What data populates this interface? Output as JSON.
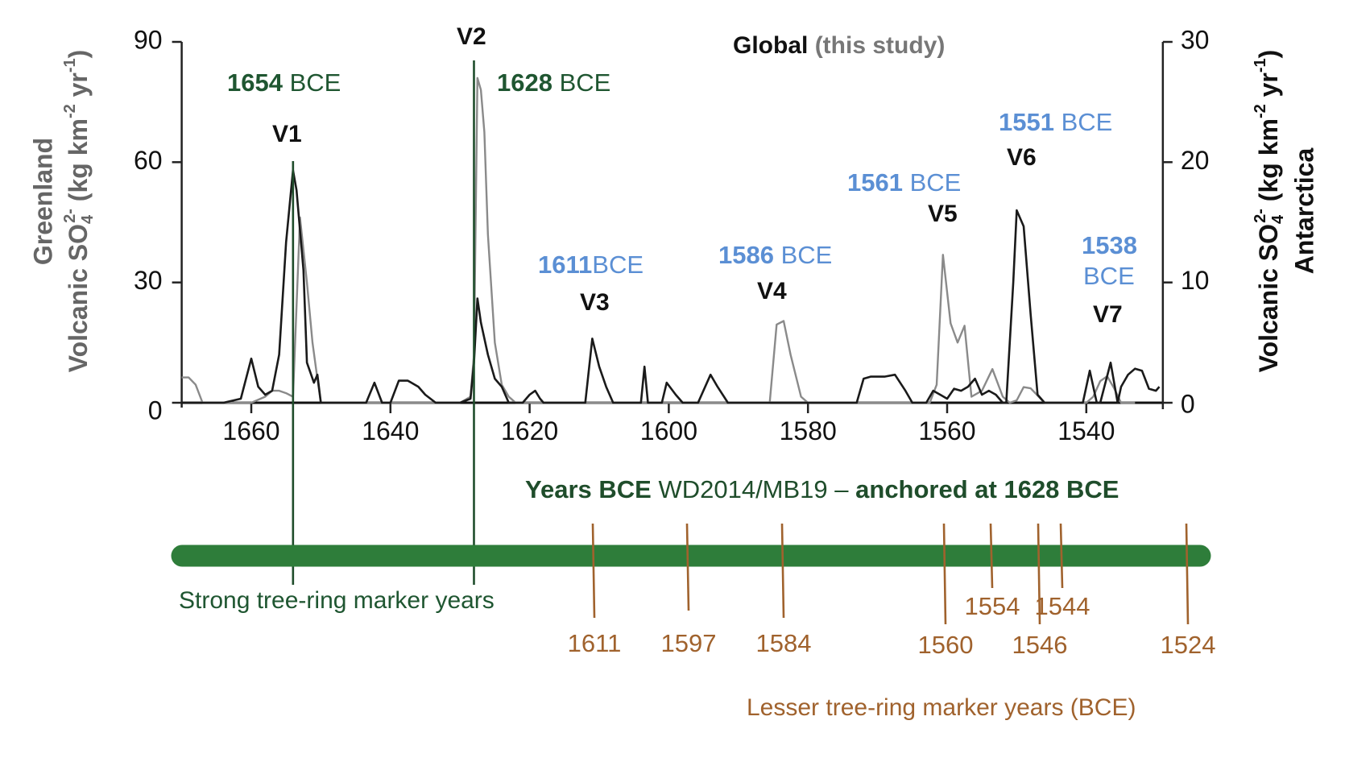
{
  "chart_data": {
    "type": "line",
    "title": "Global (this study)",
    "title_parts": {
      "main": "Global",
      "sub": "(this study)"
    },
    "xlabel": "Years BCE WD2014/MB19 – anchored at 1628 BCE",
    "xlabel_parts": {
      "a": "Years BCE",
      "b": "WD2014/MB19 –",
      "c": "anchored at 1628 BCE"
    },
    "ylabel_left": {
      "region": "Greenland",
      "units": "Volcanic SO4 2- (kg km-2 yr-1)"
    },
    "ylabel_right": {
      "region": "Antarctica",
      "units": "Volcanic SO4 2- (kg km-2 yr-1)"
    },
    "xlim": [
      1670,
      1529
    ],
    "x_reversed": true,
    "ylim_left": [
      0,
      90
    ],
    "ylim_right": [
      0,
      30
    ],
    "x_ticks": [
      1660,
      1640,
      1620,
      1600,
      1580,
      1560,
      1540
    ],
    "y_ticks_left": [
      0,
      30,
      60,
      90
    ],
    "y_ticks_right": [
      0,
      10,
      20,
      30
    ],
    "grid": false,
    "series": [
      {
        "name": "Greenland",
        "axis": "left",
        "color": "#1a1a1a",
        "points": [
          [
            1670,
            0
          ],
          [
            1667,
            0
          ],
          [
            1664,
            0
          ],
          [
            1661.5,
            1
          ],
          [
            1660,
            11
          ],
          [
            1659,
            4
          ],
          [
            1658,
            2
          ],
          [
            1657,
            3
          ],
          [
            1656,
            12
          ],
          [
            1655,
            40
          ],
          [
            1654,
            58
          ],
          [
            1653.5,
            53
          ],
          [
            1652.5,
            33
          ],
          [
            1652,
            10
          ],
          [
            1651,
            5
          ],
          [
            1650.5,
            7
          ],
          [
            1650,
            0
          ],
          [
            1649,
            0
          ],
          [
            1645,
            0
          ],
          [
            1643.5,
            0
          ],
          [
            1642.3,
            5
          ],
          [
            1641.2,
            0
          ],
          [
            1640,
            0
          ],
          [
            1638.8,
            5.5
          ],
          [
            1637.5,
            5.5
          ],
          [
            1636,
            4
          ],
          [
            1635,
            2
          ],
          [
            1633.5,
            0
          ],
          [
            1630,
            0
          ],
          [
            1628.5,
            1
          ],
          [
            1628,
            10
          ],
          [
            1627.5,
            26
          ],
          [
            1627,
            20
          ],
          [
            1626,
            12
          ],
          [
            1625,
            6
          ],
          [
            1624,
            4
          ],
          [
            1623,
            0
          ],
          [
            1621,
            0
          ],
          [
            1620,
            2
          ],
          [
            1619.2,
            3
          ],
          [
            1618.5,
            1
          ],
          [
            1618,
            0
          ],
          [
            1613,
            0
          ],
          [
            1612,
            0
          ],
          [
            1611,
            16
          ],
          [
            1610,
            9
          ],
          [
            1609,
            4
          ],
          [
            1608,
            0
          ],
          [
            1605,
            0
          ],
          [
            1604,
            0
          ],
          [
            1603.5,
            9
          ],
          [
            1603,
            0
          ],
          [
            1601,
            0
          ],
          [
            1600.3,
            5
          ],
          [
            1599,
            2
          ],
          [
            1598,
            0
          ],
          [
            1597,
            0
          ],
          [
            1595.8,
            0
          ],
          [
            1594,
            7
          ],
          [
            1593,
            4
          ],
          [
            1591.5,
            0
          ],
          [
            1573,
            0
          ],
          [
            1572,
            6
          ],
          [
            1571,
            6.5
          ],
          [
            1569,
            6.5
          ],
          [
            1567.5,
            7
          ],
          [
            1566,
            3
          ],
          [
            1565,
            0
          ],
          [
            1563,
            0
          ],
          [
            1562,
            3
          ],
          [
            1561,
            2
          ],
          [
            1560,
            1
          ],
          [
            1559,
            3.5
          ],
          [
            1558,
            3
          ],
          [
            1557,
            4
          ],
          [
            1556,
            6
          ],
          [
            1555,
            2
          ],
          [
            1554,
            3
          ],
          [
            1553,
            2
          ],
          [
            1552,
            0
          ],
          [
            1551.5,
            0
          ],
          [
            1550.5,
            30
          ],
          [
            1550,
            48
          ],
          [
            1549,
            44
          ],
          [
            1548,
            22
          ],
          [
            1547,
            2
          ],
          [
            1546,
            0
          ],
          [
            1541,
            0
          ],
          [
            1540.5,
            0
          ],
          [
            1539.5,
            8
          ],
          [
            1538.5,
            0
          ],
          [
            1538,
            0
          ],
          [
            1536.5,
            10
          ],
          [
            1535.5,
            0
          ],
          [
            1535,
            4
          ],
          [
            1534,
            7
          ],
          [
            1533,
            8.5
          ],
          [
            1532,
            8
          ],
          [
            1531,
            3.5
          ],
          [
            1530,
            3
          ],
          [
            1529.5,
            4
          ]
        ]
      },
      {
        "name": "Antarctica",
        "axis": "right",
        "color": "#8a8a8a",
        "points": [
          [
            1670,
            2.1
          ],
          [
            1669,
            2.1
          ],
          [
            1668,
            1.5
          ],
          [
            1667,
            0
          ],
          [
            1665,
            0
          ],
          [
            1660,
            0
          ],
          [
            1658,
            0.5
          ],
          [
            1657,
            1
          ],
          [
            1656,
            1
          ],
          [
            1655,
            0.8
          ],
          [
            1654,
            0.5
          ],
          [
            1653,
            15.4
          ],
          [
            1652,
            10
          ],
          [
            1651.2,
            5
          ],
          [
            1650.5,
            2
          ],
          [
            1650,
            0
          ],
          [
            1645,
            0
          ],
          [
            1630,
            0
          ],
          [
            1628.5,
            0.5
          ],
          [
            1628,
            4
          ],
          [
            1627.5,
            27
          ],
          [
            1627,
            26
          ],
          [
            1626.5,
            22.5
          ],
          [
            1626,
            14
          ],
          [
            1625,
            5
          ],
          [
            1624,
            1.5
          ],
          [
            1623,
            0.5
          ],
          [
            1622,
            0
          ],
          [
            1590,
            0
          ],
          [
            1585.5,
            0
          ],
          [
            1584.5,
            6.5
          ],
          [
            1583.5,
            6.8
          ],
          [
            1582.5,
            4
          ],
          [
            1581,
            0.5
          ],
          [
            1580,
            0
          ],
          [
            1566,
            0
          ],
          [
            1562.5,
            0
          ],
          [
            1561.5,
            1.5
          ],
          [
            1560.6,
            12.3
          ],
          [
            1559.5,
            6.6
          ],
          [
            1558.5,
            5
          ],
          [
            1557.5,
            6.4
          ],
          [
            1556.5,
            0.5
          ],
          [
            1555,
            1
          ],
          [
            1553.5,
            2.8
          ],
          [
            1552,
            0.5
          ],
          [
            1551,
            0
          ],
          [
            1550,
            0.2
          ],
          [
            1549,
            1.3
          ],
          [
            1548,
            1.2
          ],
          [
            1547,
            0.6
          ],
          [
            1546,
            0
          ],
          [
            1540,
            0
          ],
          [
            1539,
            0.5
          ],
          [
            1538,
            1.8
          ],
          [
            1537,
            2.2
          ],
          [
            1536,
            1.2
          ],
          [
            1535,
            0
          ],
          [
            1534,
            0
          ],
          [
            1533,
            0
          ]
        ]
      }
    ],
    "volcano_labels": [
      {
        "id": "V1",
        "date_bold": "1654",
        "date_suffix": " BCE",
        "color": "#1f5631",
        "strong_marker": true,
        "year": 1654
      },
      {
        "id": "V2",
        "date_bold": "1628",
        "date_suffix": " BCE",
        "color": "#1f5631",
        "strong_marker": true,
        "year": 1628
      },
      {
        "id": "V3",
        "date_bold": "1611",
        "date_suffix": "BCE",
        "color": "#5b8fd4",
        "strong_marker": false,
        "year": 1611
      },
      {
        "id": "V4",
        "date_bold": "1586",
        "date_suffix": " BCE",
        "color": "#5b8fd4",
        "strong_marker": false,
        "year": 1586
      },
      {
        "id": "V5",
        "date_bold": "1561",
        "date_suffix": " BCE",
        "color": "#5b8fd4",
        "strong_marker": false,
        "year": 1561
      },
      {
        "id": "V6",
        "date_bold": "1551",
        "date_suffix": " BCE",
        "color": "#5b8fd4",
        "strong_marker": false,
        "year": 1551
      },
      {
        "id": "V7",
        "date_bold": "1538",
        "date_suffix": "BCE",
        "color": "#5b8fd4",
        "strong_marker": false,
        "year": 1538
      }
    ],
    "timeline": {
      "strong_marker_label": "Strong tree-ring marker years",
      "strong_marker_years": [
        1654,
        1628
      ],
      "lesser_marker_label": "Lesser tree-ring marker years (BCE)",
      "lesser_marker_years": [
        1611,
        1597,
        1584,
        1560,
        1554,
        1546,
        1544,
        1524
      ],
      "bar_color": "#2e7d3a",
      "strong_color": "#1f4d2b",
      "lesser_color": "#a0622d"
    }
  }
}
